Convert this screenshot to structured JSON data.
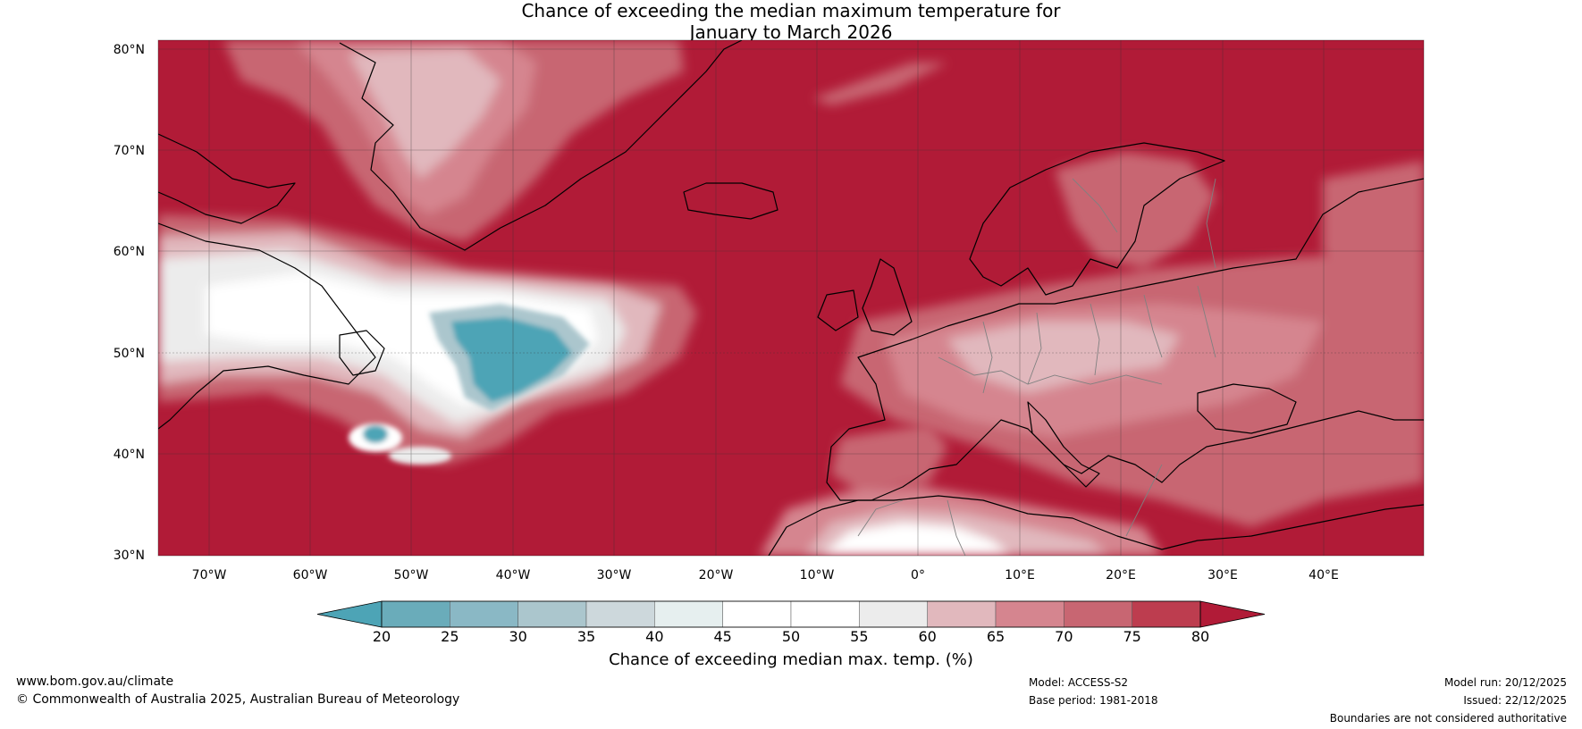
{
  "title": {
    "line1": "Chance of exceeding the median maximum temperature for",
    "line2": "January to March 2026"
  },
  "axes": {
    "lat_labels": [
      "80°N",
      "70°N",
      "60°N",
      "50°N",
      "40°N",
      "30°N"
    ],
    "lon_labels": [
      "70°W",
      "60°W",
      "50°W",
      "40°W",
      "30°W",
      "20°W",
      "10°W",
      "0°",
      "10°E",
      "20°E",
      "30°E",
      "40°E"
    ]
  },
  "colorbar": {
    "ticks": [
      "20",
      "25",
      "30",
      "35",
      "40",
      "45",
      "50",
      "55",
      "60",
      "65",
      "70",
      "75",
      "80"
    ],
    "colors": [
      "#4da4b6",
      "#6aacba",
      "#8ab8c5",
      "#abc6cd",
      "#cdd8dc",
      "#e6efef",
      "#ffffff",
      "#ffffff",
      "#ececec",
      "#e1b8bd",
      "#d5858f",
      "#c86672",
      "#bd3d4f",
      "#b11b37",
      "#b11b37"
    ],
    "label": "Chance of exceeding median max. temp. (%)"
  },
  "footer": {
    "url": "www.bom.gov.au/climate",
    "copyright": "© Commonwealth of Australia 2025, Australian Bureau of Meteorology",
    "model": "Model: ACCESS-S2",
    "base_period": "Base period: 1981-2018",
    "model_run": "Model run: 20/12/2025",
    "issued": "Issued: 22/12/2025",
    "disclaimer": "Boundaries are not considered authoritative"
  },
  "palette": {
    "hot": "#b11b37",
    "warm": "#c86672",
    "mild": "#d5858f",
    "light": "#e1b8bd",
    "neutral": "#ececec",
    "white": "#ffffff",
    "cool": "#4da4b6"
  }
}
